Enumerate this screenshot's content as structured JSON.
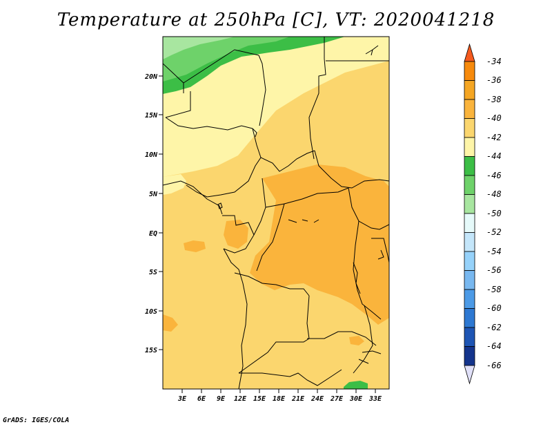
{
  "title": "Temperature at 250hPa [C], VT: 2020041218",
  "credit": "GrADS: IGES/COLA",
  "map": {
    "lat_labels": [
      "20N",
      "15N",
      "10N",
      "5N",
      "EQ",
      "5S",
      "10S",
      "15S"
    ],
    "lon_labels": [
      "3E",
      "6E",
      "9E",
      "12E",
      "15E",
      "18E",
      "21E",
      "24E",
      "27E",
      "30E",
      "33E"
    ]
  },
  "colorbar": {
    "labels": [
      "-34",
      "-36",
      "-38",
      "-40",
      "-42",
      "-44",
      "-46",
      "-48",
      "-50",
      "-52",
      "-54",
      "-56",
      "-58",
      "-60",
      "-62",
      "-64",
      "-66"
    ],
    "colors": {
      "c_gt34": "#f55a1e",
      "c_34_36": "#f78a0c",
      "c_36_38": "#f5a623",
      "c_38_40": "#fab43c",
      "c_40_42": "#fbd66e",
      "c_42_44": "#fef5a8",
      "c_44_46": "#3cbe46",
      "c_46_48": "#6ed26a",
      "c_48_50": "#a8e6a0",
      "c_50_52": "#e6fafa",
      "c_52_54": "#c4e6fa",
      "c_54_56": "#96d2fa",
      "c_56_58": "#78b8f0",
      "c_58_60": "#4c9ae6",
      "c_60_62": "#2d78d2",
      "c_62_64": "#1e55b4",
      "c_64_66": "#14348c",
      "c_lt66": "#0a1664",
      "c_under": "#e0e0f8"
    }
  }
}
